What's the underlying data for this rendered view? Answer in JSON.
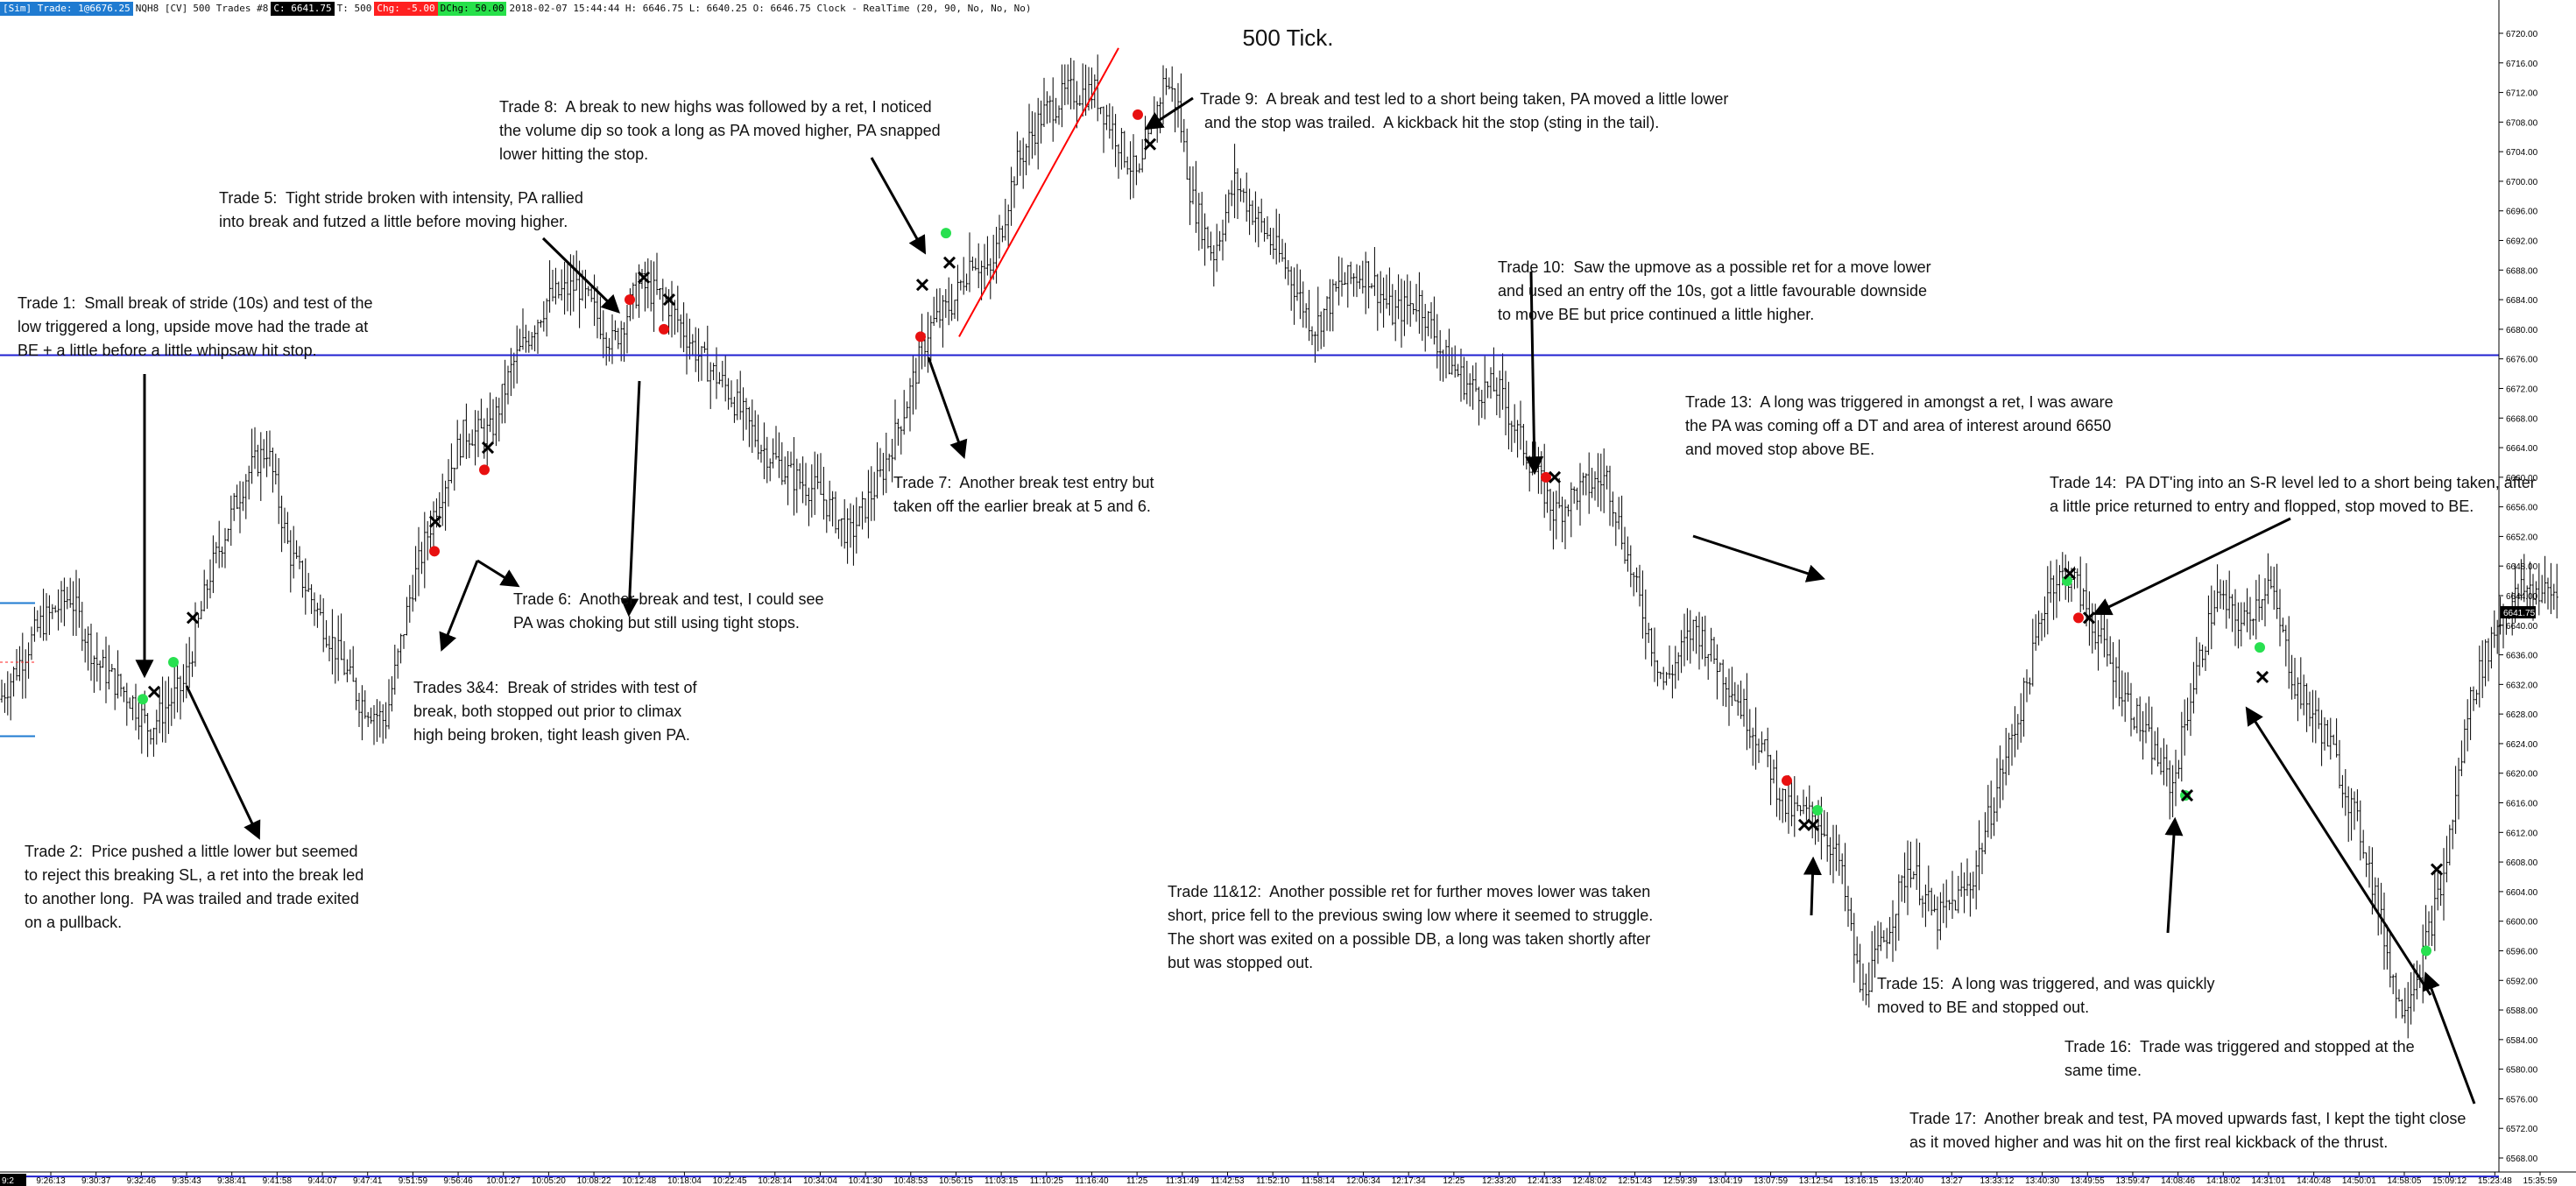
{
  "header": {
    "items": [
      {
        "text": "[Sim] Trade: 1@6676.25",
        "style": "b"
      },
      {
        "text": "NQH8 [CV]",
        "style": ""
      },
      {
        "text": "500 Trades #8",
        "style": ""
      },
      {
        "text": "C: 6641.75",
        "style": "k"
      },
      {
        "text": "T: 500",
        "style": ""
      },
      {
        "text": "Chg: -5.00",
        "style": "r"
      },
      {
        "text": "DChg: 50.00",
        "style": "g"
      },
      {
        "text": "2018-02-07 15:44:44 H: 6646.75 L: 6640.25 O: 6646.75 Clock - RealTime  (20, 90, No, No, No)",
        "style": ""
      }
    ]
  },
  "title": "500 Tick.",
  "colors": {
    "bars": "#000000",
    "level_line": "#2020d0",
    "trend_line": "#ff0000",
    "long": "#28e050",
    "short_entry": "#e81010",
    "exit": "#000000",
    "price_tag": "#000000"
  },
  "chart_data": {
    "type": "bar",
    "subtype": "ohlc",
    "y_ticks": [
      6720.0,
      6716.0,
      6712.0,
      6708.0,
      6704.0,
      6700.0,
      6696.0,
      6692.0,
      6688.0,
      6684.0,
      6680.0,
      6676.0,
      6672.0,
      6668.0,
      6664.0,
      6660.0,
      6656.0,
      6652.0,
      6648.0,
      6644.0,
      6640.0,
      6636.0,
      6632.0,
      6628.0,
      6624.0,
      6620.0,
      6616.0,
      6612.0,
      6608.0,
      6604.0,
      6600.0,
      6596.0,
      6592.0,
      6588.0,
      6584.0,
      6580.0,
      6576.0,
      6572.0,
      6568.0
    ],
    "ylim": [
      6564,
      6723
    ],
    "last_price_label": "6641.75",
    "last_price": 6641.75,
    "x_ticks": [
      "9:26:13",
      "9:30:37",
      "9:32:46",
      "9:35:43",
      "9:38:41",
      "9:41:58",
      "9:44:07",
      "9:47:41",
      "9:51:59",
      "9:56:46",
      "10:01:27",
      "10:05:20",
      "10:08:22",
      "10:12:48",
      "10:18:04",
      "10:22:45",
      "10:28:14",
      "10:34:04",
      "10:41:30",
      "10:48:53",
      "10:56:15",
      "11:03:15",
      "11:10:25",
      "11:16:40",
      "11:25",
      "11:31:49",
      "11:42:53",
      "11:52:10",
      "11:58:14",
      "12:06:34",
      "12:17:34",
      "12:25",
      "12:33:20",
      "12:41:33",
      "12:48:02",
      "12:51:43",
      "12:59:39",
      "13:04:19",
      "13:07:59",
      "13:12:54",
      "13:16:15",
      "13:20:40",
      "13:27",
      "13:33:12",
      "13:40:30",
      "13:49:55",
      "13:59:47",
      "14:08:46",
      "14:18:02",
      "14:31:01",
      "14:40:48",
      "14:50:01",
      "14:58:05",
      "15:09:12",
      "15:23:48",
      "15:35:59"
    ],
    "x_first_label": "9:2",
    "horizontal_levels": [
      6676.5,
      6565.5
    ],
    "price_path": [
      [
        0,
        6630
      ],
      [
        45,
        6640
      ],
      [
        80,
        6644
      ],
      [
        110,
        6635
      ],
      [
        150,
        6630
      ],
      [
        170,
        6626
      ],
      [
        210,
        6632
      ],
      [
        240,
        6647
      ],
      [
        280,
        6660
      ],
      [
        305,
        6664
      ],
      [
        330,
        6650
      ],
      [
        370,
        6640
      ],
      [
        410,
        6630
      ],
      [
        440,
        6627
      ],
      [
        470,
        6645
      ],
      [
        500,
        6657
      ],
      [
        530,
        6666
      ],
      [
        560,
        6666
      ],
      [
        585,
        6675
      ],
      [
        625,
        6684
      ],
      [
        660,
        6686
      ],
      [
        700,
        6678
      ],
      [
        730,
        6686
      ],
      [
        760,
        6684
      ],
      [
        800,
        6676
      ],
      [
        830,
        6672
      ],
      [
        870,
        6664
      ],
      [
        905,
        6660
      ],
      [
        935,
        6658
      ],
      [
        970,
        6652
      ],
      [
        1005,
        6660
      ],
      [
        1035,
        6670
      ],
      [
        1060,
        6680
      ],
      [
        1090,
        6684
      ],
      [
        1110,
        6690
      ],
      [
        1130,
        6687
      ],
      [
        1160,
        6702
      ],
      [
        1190,
        6709
      ],
      [
        1220,
        6712
      ],
      [
        1250,
        6712
      ],
      [
        1275,
        6706
      ],
      [
        1300,
        6700
      ],
      [
        1330,
        6714
      ],
      [
        1345,
        6710
      ],
      [
        1360,
        6698
      ],
      [
        1385,
        6690
      ],
      [
        1410,
        6700
      ],
      [
        1440,
        6694
      ],
      [
        1470,
        6688
      ],
      [
        1500,
        6680
      ],
      [
        1530,
        6686
      ],
      [
        1560,
        6688
      ],
      [
        1590,
        6682
      ],
      [
        1620,
        6684
      ],
      [
        1650,
        6676
      ],
      [
        1680,
        6672
      ],
      [
        1710,
        6672
      ],
      [
        1740,
        6664
      ],
      [
        1775,
        6655
      ],
      [
        1800,
        6658
      ],
      [
        1835,
        6660
      ],
      [
        1865,
        6646
      ],
      [
        1900,
        6632
      ],
      [
        1935,
        6640
      ],
      [
        1975,
        6632
      ],
      [
        2010,
        6624
      ],
      [
        2040,
        6615
      ],
      [
        2075,
        6614
      ],
      [
        2100,
        6608
      ],
      [
        2125,
        6590
      ],
      [
        2150,
        6597
      ],
      [
        2180,
        6608
      ],
      [
        2210,
        6600
      ],
      [
        2250,
        6605
      ],
      [
        2280,
        6618
      ],
      [
        2310,
        6630
      ],
      [
        2340,
        6646
      ],
      [
        2365,
        6647
      ],
      [
        2390,
        6640
      ],
      [
        2420,
        6632
      ],
      [
        2450,
        6625
      ],
      [
        2480,
        6618
      ],
      [
        2500,
        6630
      ],
      [
        2530,
        6644
      ],
      [
        2560,
        6640
      ],
      [
        2590,
        6646
      ],
      [
        2620,
        6632
      ],
      [
        2660,
        6624
      ],
      [
        2700,
        6610
      ],
      [
        2740,
        6588
      ],
      [
        2760,
        6593
      ],
      [
        2790,
        6606
      ],
      [
        2820,
        6630
      ],
      [
        2850,
        6640
      ],
      [
        2880,
        6645
      ],
      [
        2925,
        6644
      ]
    ],
    "trend_line": [
      [
        1095,
        6679
      ],
      [
        1277,
        6718
      ]
    ],
    "markers": [
      {
        "x": 163,
        "y": 6630,
        "type": "long"
      },
      {
        "x": 176,
        "y": 6631,
        "type": "exit"
      },
      {
        "x": 198,
        "y": 6635,
        "type": "long"
      },
      {
        "x": 220,
        "y": 6641,
        "type": "exit"
      },
      {
        "x": 497,
        "y": 6654,
        "type": "exit"
      },
      {
        "x": 496,
        "y": 6650,
        "type": "short"
      },
      {
        "x": 553,
        "y": 6661,
        "type": "short"
      },
      {
        "x": 557,
        "y": 6664,
        "type": "exit"
      },
      {
        "x": 719,
        "y": 6684,
        "type": "short"
      },
      {
        "x": 735,
        "y": 6687,
        "type": "exit"
      },
      {
        "x": 758,
        "y": 6680,
        "type": "short"
      },
      {
        "x": 764,
        "y": 6684,
        "type": "exit"
      },
      {
        "x": 1051,
        "y": 6679,
        "type": "short"
      },
      {
        "x": 1053,
        "y": 6686,
        "type": "exit"
      },
      {
        "x": 1080,
        "y": 6693,
        "type": "long"
      },
      {
        "x": 1084,
        "y": 6689,
        "type": "exit"
      },
      {
        "x": 1299,
        "y": 6709,
        "type": "short"
      },
      {
        "x": 1313,
        "y": 6705,
        "type": "exit"
      },
      {
        "x": 1765,
        "y": 6660,
        "type": "short"
      },
      {
        "x": 1775,
        "y": 6660,
        "type": "exit"
      },
      {
        "x": 2040,
        "y": 6619,
        "type": "short"
      },
      {
        "x": 2060,
        "y": 6613,
        "type": "exit"
      },
      {
        "x": 2070,
        "y": 6613,
        "type": "exit"
      },
      {
        "x": 2075,
        "y": 6615,
        "type": "long"
      },
      {
        "x": 2360,
        "y": 6646,
        "type": "long"
      },
      {
        "x": 2363,
        "y": 6647,
        "type": "exit"
      },
      {
        "x": 2373,
        "y": 6641,
        "type": "short"
      },
      {
        "x": 2385,
        "y": 6641,
        "type": "exit"
      },
      {
        "x": 2495,
        "y": 6617,
        "type": "long"
      },
      {
        "x": 2497,
        "y": 6617,
        "type": "exit"
      },
      {
        "x": 2580,
        "y": 6637,
        "type": "long"
      },
      {
        "x": 2583,
        "y": 6633,
        "type": "exit"
      },
      {
        "x": 2770,
        "y": 6596,
        "type": "long"
      },
      {
        "x": 2782,
        "y": 6607,
        "type": "exit"
      }
    ],
    "annotations": [
      {
        "text": "Trade 1:  Small break of stride (10s) and test of the\nlow triggered a long, upside move had the trade at\nBE + a little before a little whipsaw hit stop.",
        "x": 20,
        "y": 333
      },
      {
        "text": "Trade 2:  Price pushed a little lower but seemed\nto reject this breaking SL, a ret into the break led\nto another long.  PA was trailed and trade exited\non a pullback.",
        "x": 28,
        "y": 959
      },
      {
        "text": "Trade 5:  Tight stride broken with intensity, PA rallied\ninto break and futzed a little before moving higher.",
        "x": 250,
        "y": 213
      },
      {
        "text": "Trades 3&4:  Break of strides with test of\nbreak, both stopped out prior to climax\nhigh being broken, tight leash given PA.",
        "x": 472,
        "y": 772
      },
      {
        "text": "Trade 6:  Another break and test, I could see\nPA was choking but still using tight stops.",
        "x": 586,
        "y": 671
      },
      {
        "text": "Trade 8:  A break to new highs was followed by a ret, I noticed\nthe volume dip so took a long as PA moved higher, PA snapped\nlower hitting the stop.",
        "x": 570,
        "y": 109
      },
      {
        "text": "Trade 7:  Another break test entry but\ntaken off the earlier break at 5 and 6.",
        "x": 1020,
        "y": 538
      },
      {
        "text": "Trade 9:  A break and test led to a short being taken, PA moved a little lower\n and the stop was trailed.  A kickback hit the stop (sting in the tail).",
        "x": 1370,
        "y": 100
      },
      {
        "text": "Trade 10:  Saw the upmove as a possible ret for a move lower\nand used an entry off the 10s, got a little favourable downside\nto move BE but price continued a little higher.",
        "x": 1710,
        "y": 292
      },
      {
        "text": "Trade 13:  A long was triggered in amongst a ret, I was aware\nthe PA was coming off a DT and area of interest around 6650\nand moved stop above BE.",
        "x": 1924,
        "y": 446
      },
      {
        "text": "Trade 14:  PA DT'ing into an S-R level led to a short being taken, after\na little price returned to entry and flopped, stop moved to BE.",
        "x": 2340,
        "y": 538
      },
      {
        "text": "Trade 11&12:  Another possible ret for further moves lower was taken\nshort, price fell to the previous swing low where it seemed to struggle.\nThe short was exited on a possible DB, a long was taken shortly after\nbut was stopped out.",
        "x": 1333,
        "y": 1005
      },
      {
        "text": "Trade 15:  A long was triggered, and was quickly\nmoved to BE and stopped out.",
        "x": 2143,
        "y": 1110
      },
      {
        "text": "Trade 16:  Trade was triggered and stopped at the\nsame time.",
        "x": 2357,
        "y": 1182
      },
      {
        "text": "Trade 17:  Another break and test, PA moved upwards fast, I kept the tight close\nas it moved higher and was hit on the first real kickback of the thrust.",
        "x": 2180,
        "y": 1264
      }
    ],
    "arrows": [
      [
        165,
        427,
        165,
        770
      ],
      [
        213,
        783,
        295,
        955
      ],
      [
        620,
        272,
        705,
        355
      ],
      [
        730,
        435,
        718,
        700
      ],
      [
        545,
        640,
        505,
        740
      ],
      [
        545,
        640,
        590,
        668
      ],
      [
        995,
        180,
        1055,
        287
      ],
      [
        1060,
        408,
        1100,
        520
      ],
      [
        1362,
        112,
        1310,
        146
      ],
      [
        1748,
        310,
        1752,
        538
      ],
      [
        1933,
        612,
        2080,
        660
      ],
      [
        2615,
        592,
        2393,
        700
      ],
      [
        2475,
        1065,
        2483,
        937
      ],
      [
        2775,
        1136,
        2566,
        810
      ],
      [
        2825,
        1260,
        2770,
        1113
      ],
      [
        2068,
        1045,
        2070,
        982
      ]
    ]
  }
}
